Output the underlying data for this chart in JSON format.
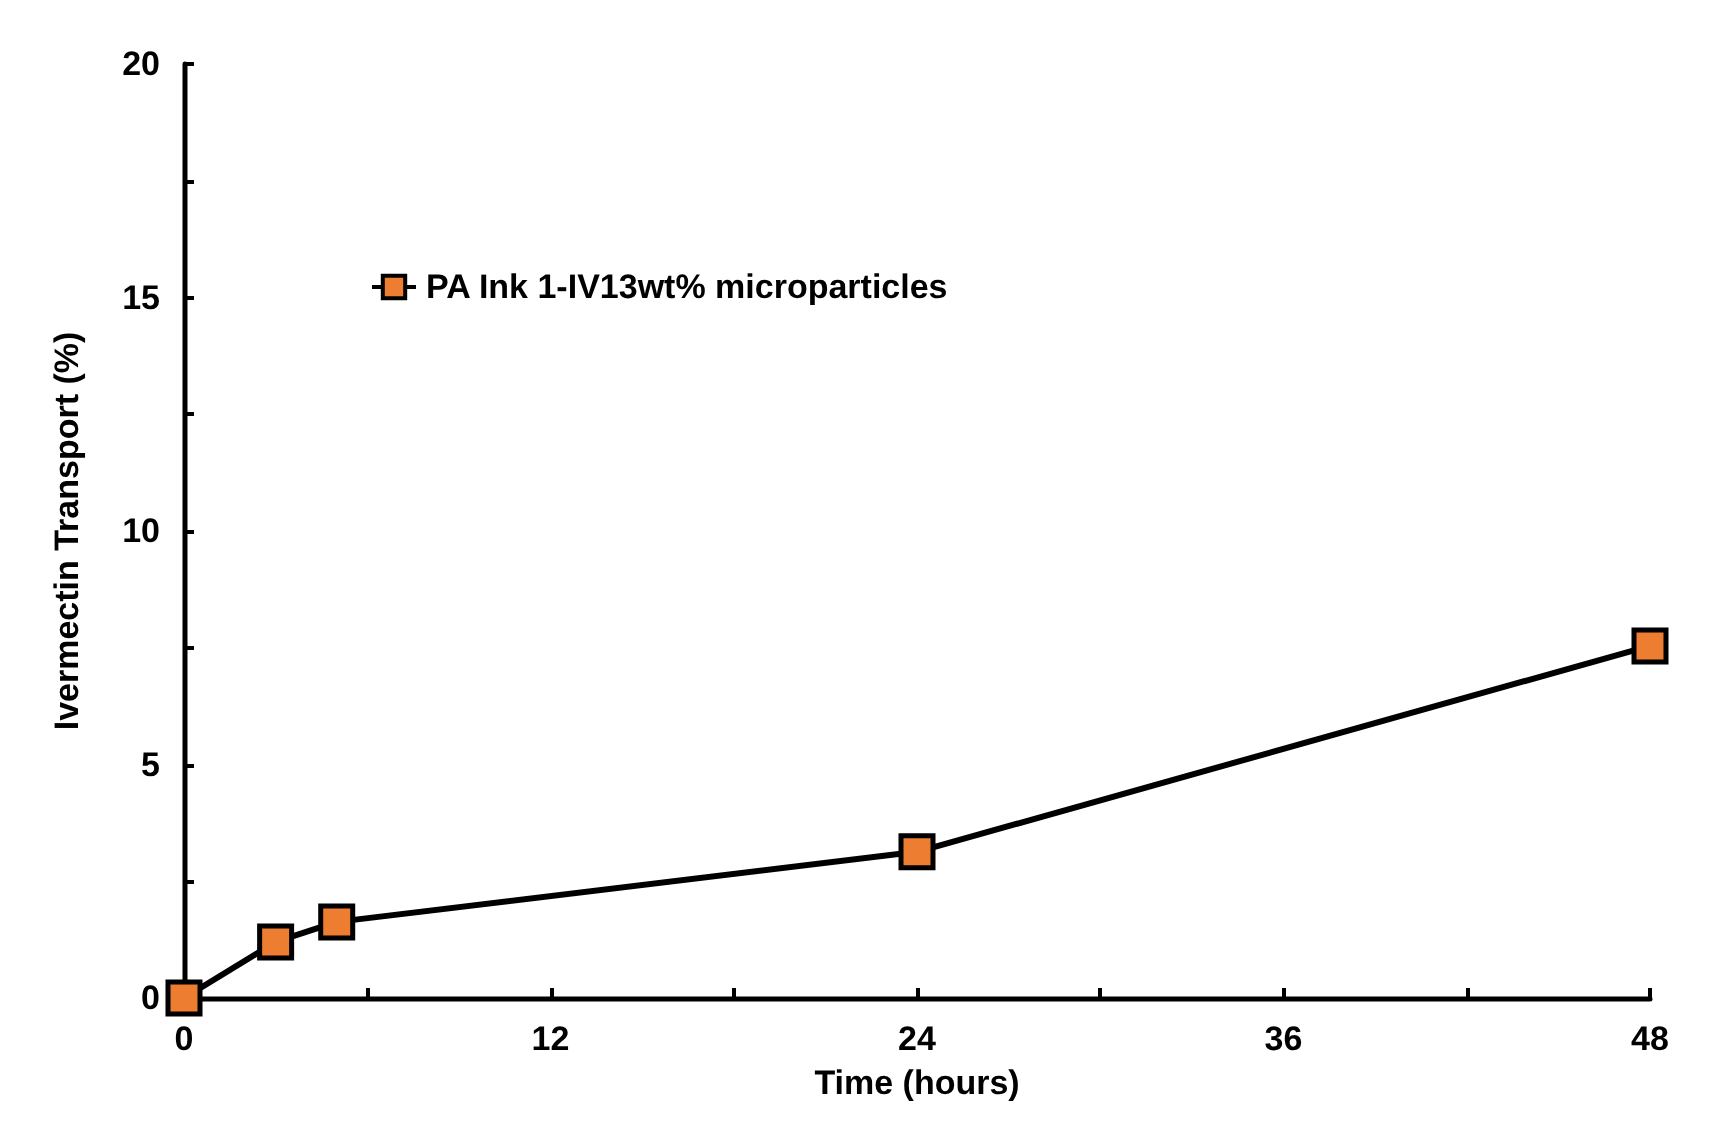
{
  "chart_data": {
    "type": "line",
    "xlabel": "Time (hours)",
    "ylabel": "Ivermectin Transport (%)",
    "x": [
      0,
      3,
      5,
      24,
      48
    ],
    "series": [
      {
        "name": "PA Ink 1-IV13wt% microparticles",
        "color": "#ed7d31",
        "values": [
          0,
          1.2,
          1.63,
          3.13,
          7.54
        ]
      }
    ],
    "xlim": [
      0,
      48
    ],
    "xticks": [
      0,
      {
        "value": 6,
        "label": null
      },
      12,
      {
        "value": 18,
        "label": null
      },
      24,
      {
        "value": 30,
        "label": null
      },
      36,
      {
        "value": 42,
        "label": null
      },
      48
    ],
    "ylim": [
      0,
      20
    ],
    "yticks": [
      0,
      {
        "value": 2.5,
        "label": null
      },
      5,
      {
        "value": 7.5,
        "label": null
      },
      10,
      {
        "value": 12.5,
        "label": null
      },
      15,
      {
        "value": 17.5,
        "label": null
      },
      20
    ],
    "grid": false,
    "legend": "top left",
    "marker": "square",
    "line_style": "solid"
  }
}
